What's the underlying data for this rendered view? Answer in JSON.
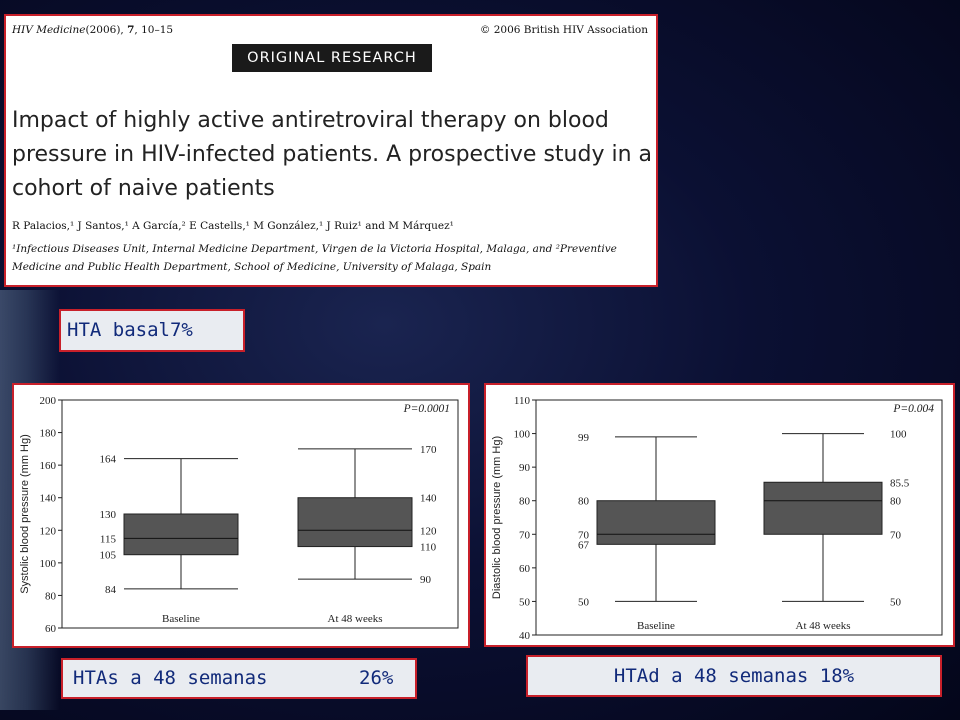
{
  "paper": {
    "journal": "HIV Medicine",
    "journal_meta": "(2006), ",
    "volume": "7",
    "pages": ", 10–15",
    "copyright": "© 2006 British HIV Association",
    "section": "ORIGINAL RESEARCH",
    "title": "Impact of highly active antiretroviral therapy on blood pressure in HIV-infected patients. A prospective study in a cohort of naive patients",
    "authors": "R Palacios,¹ J Santos,¹ A García,² E Castells,¹ M González,¹ J Ruiz¹ and M Márquez¹",
    "affiliations": "¹Infectious Diseases Unit, Internal Medicine Department, Virgen de la Victoria Hospital, Malaga, and ²Preventive Medicine and Public Health Department, School of Medicine, University of Malaga, Spain"
  },
  "labels": {
    "hta_basal": "HTA basal7%",
    "htas_text": "HTAs a 48 semanas",
    "htas_pct": "26%",
    "htad": "HTAd a 48 semanas 18%"
  },
  "colors": {
    "border": "#c8202a",
    "label_text": "#112a7a",
    "box_fill": "#555555"
  },
  "chart_data": [
    {
      "type": "boxplot",
      "ylabel": "Systolic blood pressure (mm Hg)",
      "ylim": [
        60,
        200
      ],
      "yticks": [
        60,
        80,
        100,
        120,
        140,
        160,
        180,
        200
      ],
      "p_value": "P=0.0001",
      "categories": [
        "Baseline",
        "At 48 weeks"
      ],
      "boxes": [
        {
          "min": 84,
          "q1": 105,
          "median": 115,
          "q3": 130,
          "max": 164,
          "labels": [
            "164",
            "130",
            "115",
            "105",
            "84"
          ],
          "label_side": "left"
        },
        {
          "min": 90,
          "q1": 110,
          "median": 120,
          "q3": 140,
          "max": 170,
          "labels": [
            "170",
            "140",
            "120",
            "110",
            "90"
          ],
          "label_side": "right"
        }
      ]
    },
    {
      "type": "boxplot",
      "ylabel": "Diastolic blood pressure (mm Hg)",
      "ylim": [
        40,
        110
      ],
      "yticks": [
        40,
        50,
        60,
        70,
        80,
        90,
        100,
        110
      ],
      "p_value": "P=0.004",
      "categories": [
        "Baseline",
        "At 48 weeks"
      ],
      "boxes": [
        {
          "min": 50,
          "q1": 67,
          "median": 70,
          "q3": 80,
          "max": 99,
          "labels": [
            "99",
            "80",
            "70",
            "67",
            "50"
          ],
          "label_side": "left"
        },
        {
          "min": 50,
          "q1": 70,
          "median": 80,
          "q3": 85.5,
          "max": 100,
          "labels": [
            "100",
            "85.5",
            "80",
            "70",
            "50"
          ],
          "label_side": "right"
        }
      ]
    }
  ]
}
